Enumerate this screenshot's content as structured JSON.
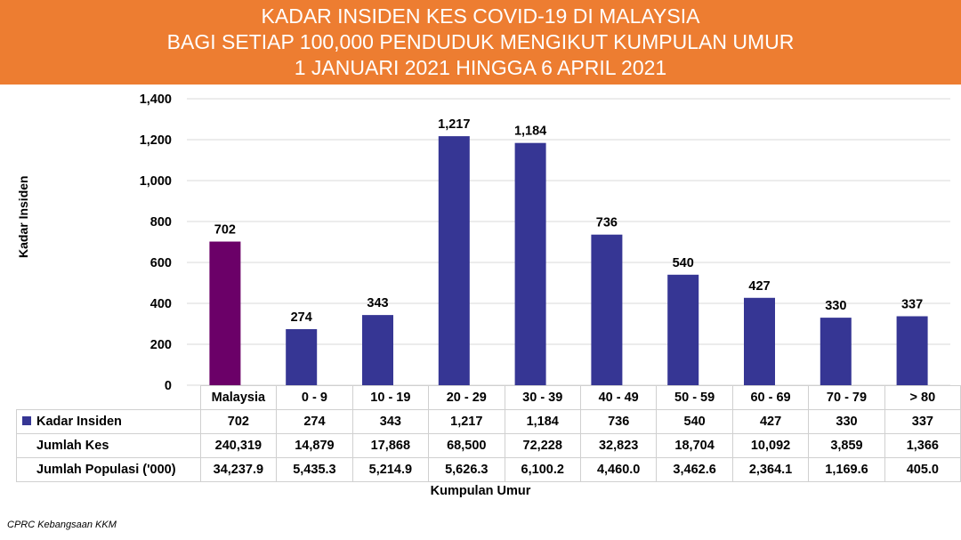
{
  "header": {
    "title_line1": "KADAR INSIDEN KES COVID-19 DI MALAYSIA",
    "title_line2": "BAGI SETIAP 100,000 PENDUDUK MENGIKUT KUMPULAN UMUR",
    "title_line3": "1 JANUARI 2021 HINGGA 6 APRIL 2021"
  },
  "colors": {
    "banner": "#ED7D31",
    "malaysia_bar": "#6B0068",
    "age_bar": "#363694"
  },
  "chart_data": {
    "type": "bar",
    "title": "KADAR INSIDEN KES COVID-19 DI MALAYSIA BAGI SETIAP 100,000 PENDUDUK MENGIKUT KUMPULAN UMUR 1 JANUARI 2021 HINGGA 6 APRIL 2021",
    "xlabel": "Kumpulan Umur",
    "ylabel": "Kadar Insiden",
    "ylim": [
      0,
      1400
    ],
    "yticks": [
      0,
      200,
      400,
      600,
      800,
      1000,
      1200,
      1400
    ],
    "ytick_labels": [
      "0",
      "200",
      "400",
      "600",
      "800",
      "1,000",
      "1,200",
      "1,400"
    ],
    "grid": true,
    "categories": [
      "Malaysia",
      "0 - 9",
      "10 - 19",
      "20 - 29",
      "30 - 39",
      "40 - 49",
      "50 - 59",
      "60 - 69",
      "70 - 79",
      "> 80"
    ],
    "series": [
      {
        "name": "Kadar Insiden",
        "values": [
          702,
          274,
          343,
          1217,
          1184,
          736,
          540,
          427,
          330,
          337
        ],
        "labels": [
          "702",
          "274",
          "343",
          "1,217",
          "1,184",
          "736",
          "540",
          "427",
          "330",
          "337"
        ]
      }
    ],
    "data_table": {
      "rows": [
        {
          "label": "Kadar Insiden",
          "values": [
            "702",
            "274",
            "343",
            "1,217",
            "1,184",
            "736",
            "540",
            "427",
            "330",
            "337"
          ]
        },
        {
          "label": "Jumlah Kes",
          "values": [
            "240,319",
            "14,879",
            "17,868",
            "68,500",
            "72,228",
            "32,823",
            "18,704",
            "10,092",
            "3,859",
            "1,366"
          ]
        },
        {
          "label": "Jumlah Populasi ('000)",
          "values": [
            "34,237.9",
            "5,435.3",
            "5,214.9",
            "5,626.3",
            "6,100.2",
            "4,460.0",
            "3,462.6",
            "2,364.1",
            "1,169.6",
            "405.0"
          ]
        }
      ]
    }
  },
  "footer": {
    "source": "CPRC Kebangsaan KKM"
  }
}
